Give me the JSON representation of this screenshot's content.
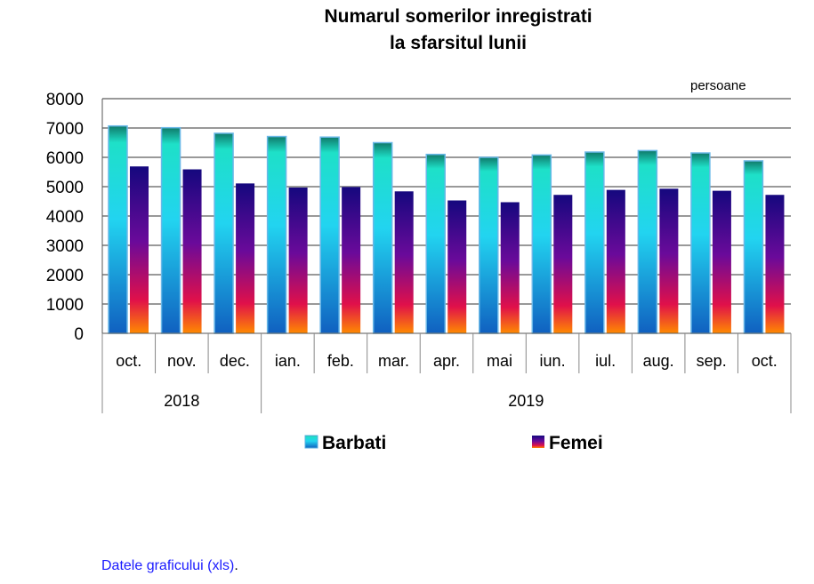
{
  "chart_data": {
    "type": "bar",
    "title": "Numarul somerilor inregistrati la sfarsitul lunii",
    "title_lines": [
      "Numarul somerilor inregistrati",
      "la sfarsitul lunii"
    ],
    "unit_label": "persoane",
    "categories": [
      "oct.",
      "nov.",
      "dec.",
      "ian.",
      "feb.",
      "mar.",
      "apr.",
      "mai",
      "iun.",
      "iul.",
      "aug.",
      "sep.",
      "oct."
    ],
    "year_groups": [
      {
        "label": "2018",
        "count": 3
      },
      {
        "label": "2019",
        "count": 10
      }
    ],
    "series": [
      {
        "name": "Barbati",
        "values": [
          7070,
          7010,
          6820,
          6710,
          6690,
          6500,
          6100,
          6000,
          6080,
          6180,
          6230,
          6150,
          5880
        ]
      },
      {
        "name": "Femei",
        "values": [
          5690,
          5590,
          5110,
          4970,
          4990,
          4840,
          4530,
          4470,
          4720,
          4890,
          4930,
          4860,
          4720
        ]
      }
    ],
    "ylim": [
      0,
      8000
    ],
    "yticks": [
      0,
      1000,
      2000,
      3000,
      4000,
      5000,
      6000,
      7000,
      8000
    ],
    "grid": true,
    "legend_position": "bottom",
    "colors": {
      "Barbati": [
        "#1ee0c8",
        "#22d4f0",
        "#1060c0"
      ],
      "Femei": [
        "#1a0a8a",
        "#7a0a9a",
        "#e0104a",
        "#ff8a00"
      ]
    }
  },
  "footer": {
    "link_text": "Datele graficului (xls)",
    "trailing": "."
  }
}
